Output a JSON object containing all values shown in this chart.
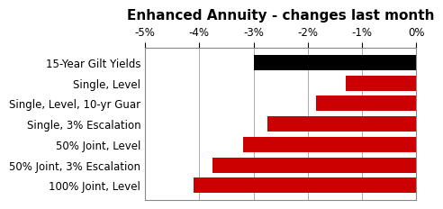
{
  "title": "Enhanced Annuity - changes last month",
  "categories": [
    "100% Joint, Level",
    "50% Joint, 3% Escalation",
    "50% Joint, Level",
    "Single, 3% Escalation",
    "Single, Level, 10-yr Guar",
    "Single, Level",
    "15-Year Gilt Yields"
  ],
  "values": [
    -4.1,
    -3.75,
    -3.2,
    -2.75,
    -1.85,
    -1.3,
    -3.0
  ],
  "colors": [
    "#cc0000",
    "#cc0000",
    "#cc0000",
    "#cc0000",
    "#cc0000",
    "#cc0000",
    "#000000"
  ],
  "xlim": [
    -5,
    0
  ],
  "xticks": [
    -5,
    -4,
    -3,
    -2,
    -1,
    0
  ],
  "xtick_labels": [
    "-5%",
    "-4%",
    "-3%",
    "-2%",
    "-1%",
    "0%"
  ],
  "title_fontsize": 11,
  "tick_fontsize": 8.5,
  "label_fontsize": 8.5,
  "background_color": "#ffffff",
  "bar_height": 0.75
}
